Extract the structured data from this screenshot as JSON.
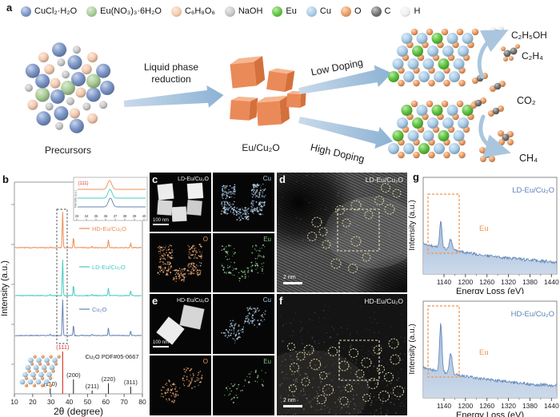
{
  "panels": {
    "a": "a",
    "b": "b",
    "c": "c",
    "d": "d",
    "e": "e",
    "f": "f",
    "g": "g"
  },
  "legend": {
    "items": [
      {
        "label": "CuCl₂·H₂O",
        "color": "#7b96c9"
      },
      {
        "label": "Eu(NO₃)₃·6H₂O",
        "color": "#a8cc96"
      },
      {
        "label": "C₆H₈O₆",
        "color": "#f4cbb0"
      },
      {
        "label": "NaOH",
        "color": "#c8c8c8"
      },
      {
        "label": "Eu",
        "color": "#5ec43e"
      },
      {
        "label": "Cu",
        "color": "#a9cde9"
      },
      {
        "label": "O",
        "color": "#ec9a60"
      },
      {
        "label": "C",
        "color": "#6f6f6f"
      },
      {
        "label": "H",
        "color": "#f0f0f0"
      }
    ]
  },
  "schematic": {
    "precursors_label": "Precursors",
    "process_line1": "Liquid phase",
    "process_line2": "reduction",
    "intermediate_label": "Eu/Cu₂O",
    "low_doping_label": "Low Doping",
    "high_doping_label": "High Doping",
    "products": [
      "C₂H₅OH",
      "C₂H₄",
      "CO₂",
      "CH₄"
    ],
    "arrow_color": "#a9c6de",
    "atom_colors": {
      "Eu": "#5ec43e",
      "Cu": "#a9cde9",
      "O": "#ec9a60",
      "C": "#6f6f6f",
      "H": "#f0f0f0"
    }
  },
  "tem_maps": {
    "c": {
      "title": "LD-Eu/Cu₂O",
      "scale_bar": "100 nm",
      "map_labels": [
        "Cu",
        "O",
        "Eu"
      ],
      "map_colors": [
        "#a5cbec",
        "#e8995c",
        "#7dc67d"
      ]
    },
    "e": {
      "title": "HD-Eu/Cu₂O",
      "scale_bar": "100 nm",
      "map_labels": [
        "Cu",
        "O",
        "Eu"
      ],
      "map_colors": [
        "#a5cbec",
        "#e8995c",
        "#7dc67d"
      ]
    }
  },
  "hrtem": {
    "d": {
      "title": "LD-Eu/Cu₂O",
      "scale_bar": "2 nm"
    },
    "f": {
      "title": "HD-Eu/Cu₂O",
      "scale_bar": "2 nm"
    }
  },
  "chart_data": [
    {
      "id": "xrd",
      "type": "line",
      "title": "",
      "xlabel": "2θ (degree)",
      "ylabel": "Intensity (a.u.)",
      "xlim": [
        10,
        80
      ],
      "xticks": [
        10,
        20,
        30,
        40,
        50,
        60,
        70,
        80
      ],
      "grid": false,
      "series": [
        {
          "name": "HD-Eu/Cu₂O",
          "color": "#ee8c52",
          "peaks_2theta": [
            29.6,
            36.4,
            42.3,
            52.5,
            61.4,
            73.6
          ],
          "peak_rel_heights": [
            3,
            100,
            29,
            3,
            22,
            13
          ]
        },
        {
          "name": "LD-Eu/Cu₂O",
          "color": "#45cbc1",
          "peaks_2theta": [
            29.6,
            36.4,
            42.3,
            52.5,
            61.4,
            73.6
          ],
          "peak_rel_heights": [
            3,
            100,
            29,
            3,
            22,
            13
          ]
        },
        {
          "name": "Cu₂O",
          "color": "#6583b4",
          "peaks_2theta": [
            29.6,
            36.4,
            42.3,
            52.5,
            61.4,
            73.6
          ],
          "peak_rel_heights": [
            3,
            100,
            29,
            3,
            22,
            13
          ]
        }
      ],
      "reference": {
        "label": "Cu₂O PDF#05-0667",
        "highlight_color": "#d93a2b",
        "highlight": {
          "hkl": "(111)",
          "two_theta": 36.4,
          "rel_intensity": 100
        },
        "lines": [
          {
            "hkl": "(110)",
            "two_theta": 29.6,
            "rel_intensity": 13
          },
          {
            "hkl": "(200)",
            "two_theta": 42.3,
            "rel_intensity": 34
          },
          {
            "hkl": "(211)",
            "two_theta": 52.5,
            "rel_intensity": 8
          },
          {
            "hkl": "(220)",
            "two_theta": 61.4,
            "rel_intensity": 25
          },
          {
            "hkl": "(311)",
            "two_theta": 73.6,
            "rel_intensity": 17
          }
        ]
      },
      "inset": {
        "peak_label": "(111)",
        "ylabel": "Intensity (a.u.)",
        "xlim": [
          33,
          40
        ],
        "xticks": [
          33,
          34,
          35,
          36,
          37,
          38,
          39,
          40
        ],
        "peak_centers": [
          36.42,
          36.46,
          36.5
        ]
      }
    },
    {
      "id": "eels-ld",
      "type": "area",
      "title": "LD-Eu/Cu₂O",
      "annotation": "Eu",
      "xlabel": "Energy Loss (eV)",
      "ylabel": "Intensity (a.u.)",
      "xlim": [
        1082,
        1455
      ],
      "xticks": [
        1140,
        1200,
        1260,
        1320,
        1380,
        1440
      ],
      "peaks_ev": [
        1131,
        1159
      ],
      "peak_rel_heights": [
        0.27,
        0.11
      ],
      "line_color": "#5d83b8",
      "fill_top": "#9db8d8",
      "fill_bottom": "#c9d7e9",
      "box_color": "#f0954e"
    },
    {
      "id": "eels-hd",
      "type": "area",
      "title": "HD-Eu/Cu₂O",
      "annotation": "Eu",
      "xlabel": "Energy Loss (eV)",
      "ylabel": "Intensity (a.u.)",
      "xlim": [
        1082,
        1455
      ],
      "xticks": [
        1140,
        1200,
        1260,
        1320,
        1380,
        1440
      ],
      "peaks_ev": [
        1131,
        1159
      ],
      "peak_rel_heights": [
        0.5,
        0.215
      ],
      "line_color": "#5d83b8",
      "fill_top": "#9db8d8",
      "fill_bottom": "#c9d7e9",
      "box_color": "#f0954e"
    }
  ]
}
